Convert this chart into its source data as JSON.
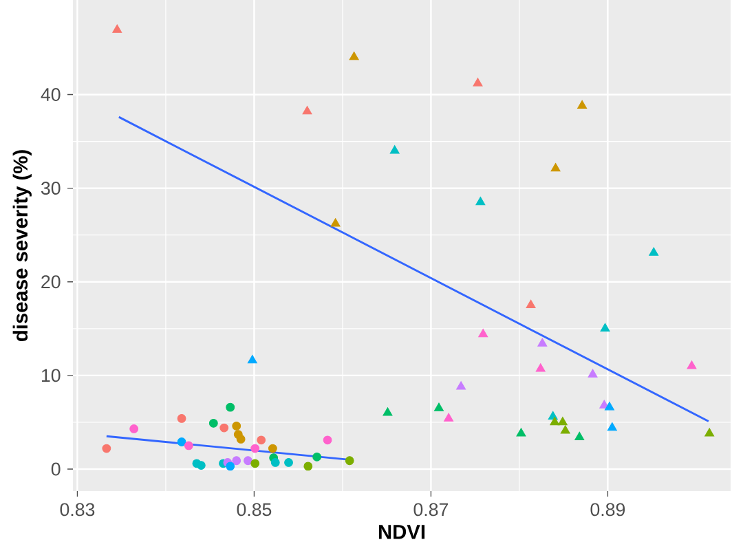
{
  "chart_data": {
    "type": "scatter",
    "xlabel": "NDVI",
    "ylabel": "disease severity (%)",
    "xlim": [
      0.8295,
      0.9039
    ],
    "ylim": [
      -2.35,
      50.1
    ],
    "xticks": [
      0.83,
      0.85,
      0.87,
      0.89
    ],
    "yticks": [
      0,
      10,
      20,
      30,
      40
    ],
    "grid": true,
    "series": [
      {
        "marker": "circle",
        "x": [
          0.8333,
          0.8364,
          0.8418,
          0.8418,
          0.8426,
          0.8435,
          0.844,
          0.8473,
          0.8454,
          0.8466,
          0.848,
          0.8482,
          0.8485,
          0.8465,
          0.847,
          0.848,
          0.8473,
          0.8493,
          0.8501,
          0.8508,
          0.8501,
          0.8521,
          0.8522,
          0.8524,
          0.8539,
          0.8561,
          0.8571,
          0.8583,
          0.8608
        ],
        "values": [
          2.2,
          4.3,
          5.4,
          2.9,
          2.5,
          0.6,
          0.4,
          6.6,
          4.9,
          4.4,
          4.6,
          3.7,
          3.2,
          0.6,
          0.7,
          0.9,
          0.3,
          0.9,
          2.2,
          3.1,
          0.6,
          2.2,
          1.2,
          0.7,
          0.7,
          0.3,
          1.3,
          3.1,
          0.9
        ],
        "colors": [
          "#F8766D",
          "#FF61CC",
          "#F8766D",
          "#00A9FF",
          "#FF61CC",
          "#00BFC4",
          "#00BFC4",
          "#00BE67",
          "#00BE67",
          "#F8766D",
          "#CD9600",
          "#CD9600",
          "#CD9600",
          "#00BFC4",
          "#C77CFF",
          "#C77CFF",
          "#00A9FF",
          "#C77CFF",
          "#FF61CC",
          "#F8766D",
          "#7CAE00",
          "#CD9600",
          "#00BE67",
          "#00BFC4",
          "#00BFC4",
          "#7CAE00",
          "#00BE67",
          "#FF61CC",
          "#7CAE00"
        ]
      },
      {
        "marker": "triangle",
        "x": [
          0.8345,
          0.8613,
          0.856,
          0.8659,
          0.8592,
          0.8753,
          0.8871,
          0.8841,
          0.8756,
          0.8952,
          0.8813,
          0.8897,
          0.8759,
          0.8826,
          0.8824,
          0.8883,
          0.8995,
          0.8734,
          0.8709,
          0.8651,
          0.872,
          0.8896,
          0.8902,
          0.8838,
          0.884,
          0.8849,
          0.8852,
          0.8905,
          0.8802,
          0.8868,
          0.9015,
          0.8498
        ],
        "values": [
          46.9,
          44.0,
          38.2,
          34.0,
          26.2,
          41.2,
          38.8,
          32.1,
          28.5,
          23.1,
          17.5,
          15.0,
          14.4,
          13.4,
          10.7,
          10.1,
          11.0,
          8.8,
          6.5,
          6.0,
          5.4,
          6.8,
          6.6,
          5.6,
          5.0,
          5.0,
          4.1,
          4.4,
          3.8,
          3.4,
          3.8,
          11.6
        ],
        "colors": [
          "#F8766D",
          "#CD9600",
          "#F8766D",
          "#00BFC4",
          "#CD9600",
          "#F8766D",
          "#CD9600",
          "#CD9600",
          "#00BFC4",
          "#00BFC4",
          "#F8766D",
          "#00BFC4",
          "#FF61CC",
          "#C77CFF",
          "#FF61CC",
          "#C77CFF",
          "#FF61CC",
          "#C77CFF",
          "#00BE67",
          "#00BE67",
          "#FF61CC",
          "#C77CFF",
          "#00A9FF",
          "#00BFC4",
          "#7CAE00",
          "#7CAE00",
          "#7CAE00",
          "#00A9FF",
          "#00BE67",
          "#00BE67",
          "#7CAE00",
          "#00A9FF"
        ]
      },
      {
        "type": "line",
        "color": "#3366FF",
        "x": [
          0.8347,
          0.9014
        ],
        "values": [
          37.6,
          5.1
        ]
      },
      {
        "type": "line",
        "color": "#3366FF",
        "x": [
          0.8333,
          0.8608
        ],
        "values": [
          3.5,
          1.0
        ]
      }
    ]
  }
}
